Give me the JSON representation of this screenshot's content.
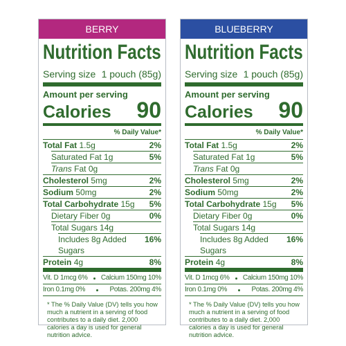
{
  "labels": [
    {
      "header": "BERRY",
      "color": "#b3287f",
      "title": "Nutrition Facts",
      "serving": {
        "label": "Serving size",
        "value": "1 pouch (85g)"
      },
      "amount_per_serving": "Amount per serving",
      "calories": {
        "label": "Calories",
        "value": "90"
      },
      "dv_header": "% Daily Value*",
      "nutrients": [
        {
          "name": "Total Fat",
          "amount": "1.5g",
          "dv": "2%",
          "sub": [
            {
              "name": "Saturated Fat",
              "amount": "1g",
              "dv": "5%"
            },
            {
              "name_italic": "Trans",
              "name": "Fat",
              "amount": "0g"
            }
          ]
        },
        {
          "name": "Cholesterol",
          "amount": "5mg",
          "dv": "2%"
        },
        {
          "name": "Sodium",
          "amount": "50mg",
          "dv": "2%"
        },
        {
          "name": "Total Carbohydrate",
          "amount": "15g",
          "dv": "5%",
          "sub": [
            {
              "name": "Dietary Fiber",
              "amount": "0g",
              "dv": "0%"
            },
            {
              "name": "Total Sugars",
              "amount": "14g",
              "sub": [
                {
                  "name": "Includes 8g Added Sugars",
                  "dv": "16%"
                }
              ]
            }
          ]
        },
        {
          "name": "Protein",
          "amount": "4g",
          "dv": "8%"
        }
      ],
      "vitamins": [
        [
          "Vit. D 1mcg 6%",
          "Calcium 150mg 10%"
        ],
        [
          "Iron 0.1mg 0%",
          "Potas. 200mg 4%"
        ]
      ],
      "footnote": "* The % Daily Value (DV) tells you how much a nutrient in a serving of food contributes to a daily diet. 2,000 calories a day is used for general nutrition advice."
    },
    {
      "header": "BLUEBERRY",
      "color": "#2b4fa2",
      "title": "Nutrition Facts",
      "serving": {
        "label": "Serving size",
        "value": "1 pouch (85g)"
      },
      "amount_per_serving": "Amount per serving",
      "calories": {
        "label": "Calories",
        "value": "90"
      },
      "dv_header": "% Daily Value*",
      "nutrients": [
        {
          "name": "Total Fat",
          "amount": "1.5g",
          "dv": "2%",
          "sub": [
            {
              "name": "Saturated Fat",
              "amount": "1g",
              "dv": "5%"
            },
            {
              "name_italic": "Trans",
              "name": "Fat",
              "amount": "0g"
            }
          ]
        },
        {
          "name": "Cholesterol",
          "amount": "5mg",
          "dv": "2%"
        },
        {
          "name": "Sodium",
          "amount": "50mg",
          "dv": "2%"
        },
        {
          "name": "Total Carbohydrate",
          "amount": "15g",
          "dv": "5%",
          "sub": [
            {
              "name": "Dietary Fiber",
              "amount": "0g",
              "dv": "0%"
            },
            {
              "name": "Total Sugars",
              "amount": "14g",
              "sub": [
                {
                  "name": "Includes 8g Added Sugars",
                  "dv": "16%"
                }
              ]
            }
          ]
        },
        {
          "name": "Protein",
          "amount": "4g",
          "dv": "8%"
        }
      ],
      "vitamins": [
        [
          "Vit. D 1mcg 6%",
          "Calcium 150mg 10%"
        ],
        [
          "Iron 0.1mg 0%",
          "Potas. 200mg 4%"
        ]
      ],
      "footnote": "* The % Daily Value (DV) tells you how much a nutrient in a serving of food contributes to a daily diet. 2,000 calories a day is used for general nutrition advice."
    }
  ]
}
